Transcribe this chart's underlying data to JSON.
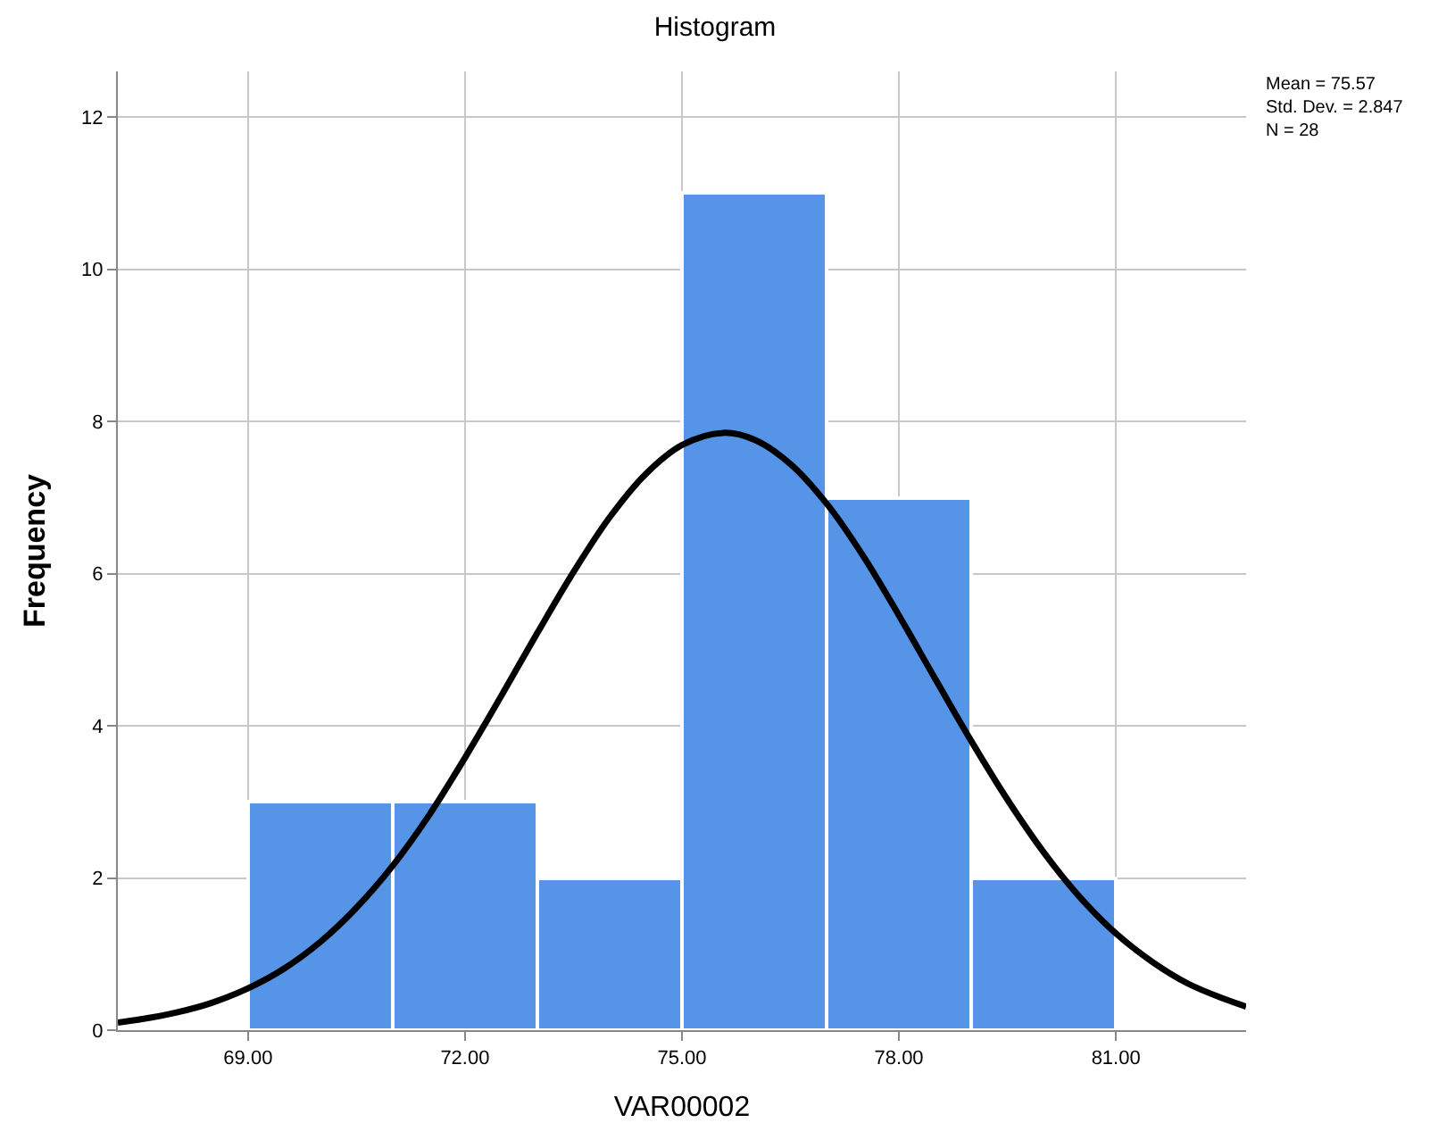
{
  "chart_data": {
    "type": "histogram",
    "title": "Histogram",
    "xlabel": "VAR00002",
    "ylabel": "Frequency",
    "bins": [
      69,
      71,
      73,
      75,
      77,
      79,
      81
    ],
    "values": [
      3,
      3,
      2,
      11,
      7,
      2
    ],
    "color": "#5594e6",
    "series": [
      {
        "type": "line",
        "color": "#000000",
        "x": [
          67.2,
          67.5,
          68,
          68.5,
          69,
          69.5,
          70,
          70.5,
          71,
          71.5,
          72,
          72.5,
          73,
          73.5,
          74,
          74.5,
          75,
          75.57,
          76,
          76.5,
          77,
          77.5,
          78,
          78.5,
          79,
          79.5,
          80,
          80.5,
          81,
          81.5,
          82,
          82.5,
          82.8
        ],
        "values": [
          0.1,
          0.14,
          0.23,
          0.36,
          0.55,
          0.81,
          1.16,
          1.61,
          2.16,
          2.82,
          3.58,
          4.39,
          5.22,
          6.02,
          6.74,
          7.31,
          7.69,
          7.85,
          7.76,
          7.44,
          6.92,
          6.24,
          5.45,
          4.62,
          3.8,
          3.03,
          2.34,
          1.75,
          1.27,
          0.9,
          0.61,
          0.41,
          0.31
        ]
      }
    ],
    "xlim": [
      67.2,
      82.8
    ],
    "xticks": [
      {
        "value": 69,
        "label": "69.00"
      },
      {
        "value": 72,
        "label": "72.00"
      },
      {
        "value": 75,
        "label": "75.00"
      },
      {
        "value": 78,
        "label": "78.00"
      },
      {
        "value": 81,
        "label": "81.00"
      }
    ],
    "ylim": [
      0,
      12.6
    ],
    "yticks": [
      0,
      2,
      4,
      6,
      8,
      10,
      12
    ],
    "grid": true,
    "annotations": [
      "Mean = 75.57",
      "Std. Dev. = 2.847",
      "N = 28"
    ]
  }
}
